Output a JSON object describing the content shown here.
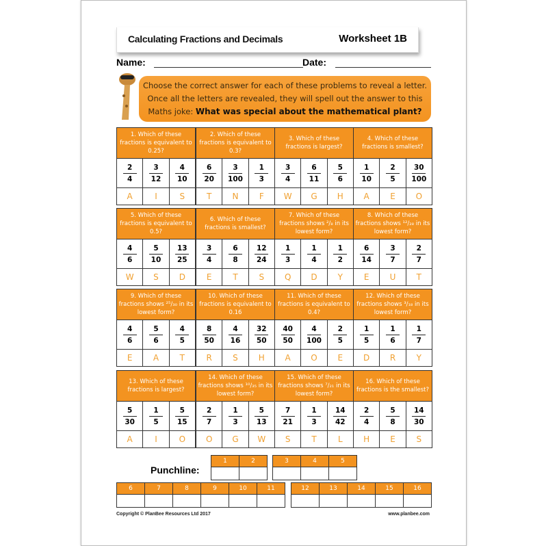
{
  "header": {
    "title": "Calculating Fractions and Decimals",
    "worksheet": "Worksheet 1B"
  },
  "fields": {
    "name_label": "Name:",
    "date_label": "Date:"
  },
  "instructions": {
    "text": "Choose the correct answer for each of these problems to reveal a letter. Once all the letters are revealed, they will spell out the answer to this Maths joke:",
    "joke": "What was special about the mathematical plant?"
  },
  "questions": [
    {
      "q": "1. Which of these fractions is equivalent to 0.25?",
      "options": [
        [
          "2",
          "4"
        ],
        [
          "3",
          "12"
        ],
        [
          "4",
          "10"
        ]
      ],
      "letters": [
        "A",
        "I",
        "S"
      ]
    },
    {
      "q": "2. Which of these fractions is equivalent to 0.3?",
      "options": [
        [
          "6",
          "20"
        ],
        [
          "3",
          "100"
        ],
        [
          "1",
          "3"
        ]
      ],
      "letters": [
        "T",
        "N",
        "F"
      ]
    },
    {
      "q": "3. Which of these fractions is largest?",
      "options": [
        [
          "3",
          "4"
        ],
        [
          "6",
          "11"
        ],
        [
          "5",
          "6"
        ]
      ],
      "letters": [
        "W",
        "G",
        "H"
      ]
    },
    {
      "q": "4. Which of these fractions is smallest?",
      "options": [
        [
          "1",
          "10"
        ],
        [
          "2",
          "5"
        ],
        [
          "30",
          "100"
        ]
      ],
      "letters": [
        "A",
        "E",
        "O"
      ]
    },
    {
      "q": "5. Which of these fractions is equivalent to 0.5?",
      "options": [
        [
          "4",
          "6"
        ],
        [
          "5",
          "10"
        ],
        [
          "13",
          "25"
        ]
      ],
      "letters": [
        "W",
        "S",
        "D"
      ]
    },
    {
      "q": "6. Which of these fractions is smallest?",
      "options": [
        [
          "3",
          "4"
        ],
        [
          "6",
          "8"
        ],
        [
          "12",
          "24"
        ]
      ],
      "letters": [
        "E",
        "T",
        "S"
      ]
    },
    {
      "q": "7. Which of these fractions shows ²/₈ in its lowest form?",
      "options": [
        [
          "1",
          "3"
        ],
        [
          "1",
          "4"
        ],
        [
          "1",
          "2"
        ]
      ],
      "letters": [
        "Q",
        "D",
        "Y"
      ]
    },
    {
      "q": "8. Which of these fractions shows ¹²/₂₈ in its lowest form?",
      "options": [
        [
          "6",
          "14"
        ],
        [
          "3",
          "7"
        ],
        [
          "2",
          "7"
        ]
      ],
      "letters": [
        "E",
        "U",
        "T"
      ]
    },
    {
      "q": "9. Which of these fractions shows ²⁵/₃₀ in its lowest form?",
      "options": [
        [
          "4",
          "6"
        ],
        [
          "5",
          "6"
        ],
        [
          "4",
          "5"
        ]
      ],
      "letters": [
        "E",
        "A",
        "T"
      ]
    },
    {
      "q": "10. Which of these fractions is equivalent to 0.16",
      "options": [
        [
          "8",
          "50"
        ],
        [
          "4",
          "16"
        ],
        [
          "32",
          "50"
        ]
      ],
      "letters": [
        "R",
        "S",
        "H"
      ]
    },
    {
      "q": "11. Which of these fractions is equivalent to 0.4?",
      "options": [
        [
          "40",
          "50"
        ],
        [
          "4",
          "100"
        ],
        [
          "2",
          "5"
        ]
      ],
      "letters": [
        "A",
        "O",
        "E"
      ]
    },
    {
      "q": "12. Which of these fractions shows ³/₁₈ in its lowest form?",
      "options": [
        [
          "1",
          "5"
        ],
        [
          "1",
          "6"
        ],
        [
          "1",
          "7"
        ]
      ],
      "letters": [
        "D",
        "R",
        "Y"
      ]
    },
    {
      "q": "13. Which of these fractions is largest?",
      "options": [
        [
          "5",
          "30"
        ],
        [
          "1",
          "5"
        ],
        [
          "5",
          "15"
        ]
      ],
      "letters": [
        "A",
        "I",
        "O"
      ]
    },
    {
      "q": "14. Which of these fractions shows ¹⁰/₃₅ in its lowest form?",
      "options": [
        [
          "2",
          "7"
        ],
        [
          "1",
          "3"
        ],
        [
          "5",
          "13"
        ]
      ],
      "letters": [
        "O",
        "G",
        "W"
      ]
    },
    {
      "q": "15. Which of these fractions shows ⁷/₂₁ in its lowest form?",
      "options": [
        [
          "7",
          "21"
        ],
        [
          "1",
          "3"
        ],
        [
          "14",
          "42"
        ]
      ],
      "letters": [
        "S",
        "T",
        "L"
      ]
    },
    {
      "q": "16. Which of these fractions is the smallest?",
      "options": [
        [
          "2",
          "4"
        ],
        [
          "5",
          "8"
        ],
        [
          "14",
          "30"
        ]
      ],
      "letters": [
        "H",
        "E",
        "S"
      ]
    }
  ],
  "punchline": {
    "label": "Punchline:",
    "groups": [
      [
        "1",
        "2"
      ],
      [
        "3",
        "4",
        "5"
      ],
      [
        "6",
        "7",
        "8",
        "9",
        "10",
        "11"
      ],
      [
        "12",
        "13",
        "14",
        "15",
        "16"
      ]
    ]
  },
  "footer": {
    "copyright": "Copyright © PlanBee Resources Ltd 2017",
    "website": "www.planbee.com"
  },
  "colors": {
    "accent": "#f39320",
    "letter": "#f0a030"
  }
}
